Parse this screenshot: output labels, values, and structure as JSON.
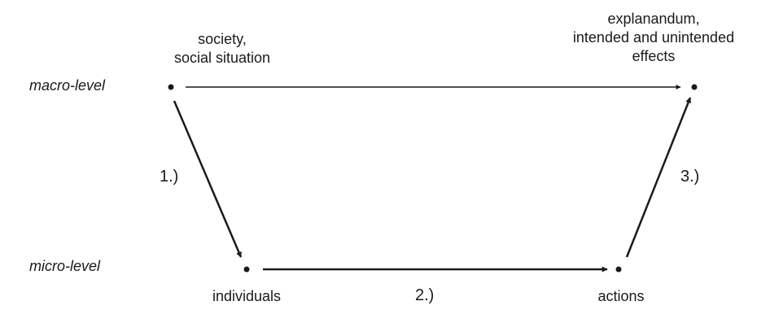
{
  "levels": {
    "macro": "macro-level",
    "micro": "micro-level"
  },
  "nodes": {
    "society": [
      "society,",
      "social situation"
    ],
    "explanandum": [
      "explanandum,",
      "intended and unintended",
      "effects"
    ],
    "individuals": "individuals",
    "actions": "actions"
  },
  "steps": {
    "one": "1.)",
    "two": "2.)",
    "three": "3.)"
  }
}
